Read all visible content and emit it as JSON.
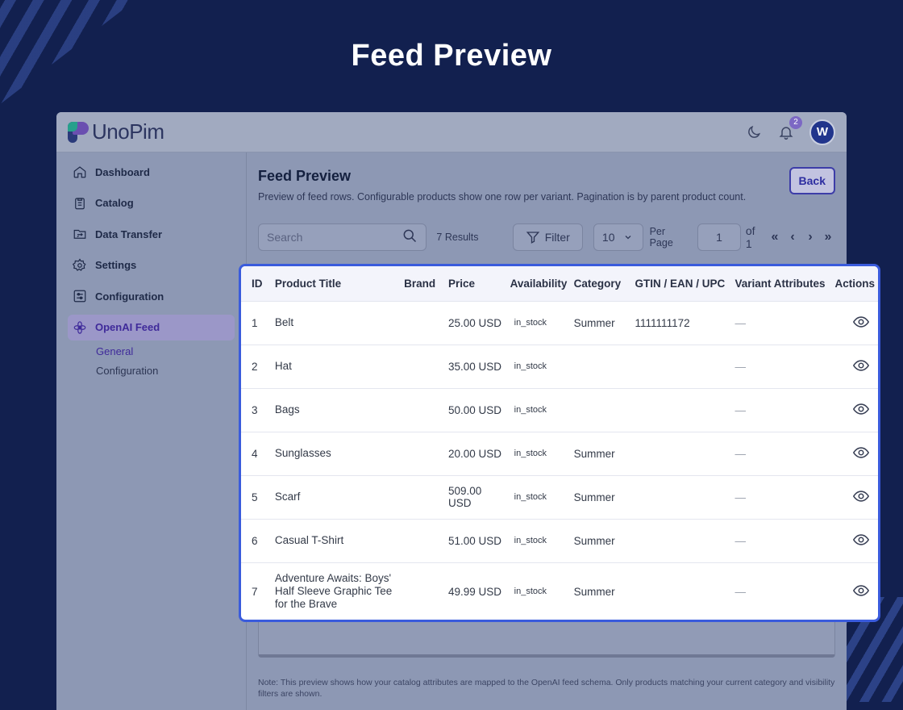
{
  "headline": "Feed Preview",
  "app": {
    "logo_text": "UnoPim",
    "notification_count": "2",
    "avatar_letter": "W"
  },
  "sidebar": {
    "items": [
      {
        "label": "Dashboard",
        "icon": "home-icon"
      },
      {
        "label": "Catalog",
        "icon": "clipboard-icon"
      },
      {
        "label": "Data Transfer",
        "icon": "folder-transfer-icon"
      },
      {
        "label": "Settings",
        "icon": "gear-icon"
      },
      {
        "label": "Configuration",
        "icon": "sliders-icon"
      },
      {
        "label": "OpenAI Feed",
        "icon": "openai-icon",
        "active": true
      }
    ],
    "subitems": [
      {
        "label": "General",
        "active": true
      },
      {
        "label": "Configuration"
      }
    ]
  },
  "page": {
    "title": "Feed Preview",
    "description": "Preview of feed rows. Configurable products show one row per variant. Pagination is by parent product count.",
    "back_label": "Back"
  },
  "toolbar": {
    "search_placeholder": "Search",
    "results": "7 Results",
    "filter_label": "Filter",
    "per_page_value": "10",
    "per_page_label": "Per Page",
    "page_value": "1",
    "of_label": "of 1"
  },
  "table": {
    "columns": [
      "ID",
      "Product Title",
      "Brand",
      "Price",
      "Availability",
      "Category",
      "GTIN / EAN / UPC",
      "Variant Attributes",
      "Actions"
    ],
    "rows": [
      {
        "id": "1",
        "title": "Belt",
        "brand": "",
        "price": "25.00 USD",
        "availability": "in_stock",
        "category": "Summer",
        "gtin": "1111111172",
        "variant": "—"
      },
      {
        "id": "2",
        "title": "Hat",
        "brand": "",
        "price": "35.00 USD",
        "availability": "in_stock",
        "category": "",
        "gtin": "",
        "variant": "—"
      },
      {
        "id": "3",
        "title": "Bags",
        "brand": "",
        "price": "50.00 USD",
        "availability": "in_stock",
        "category": "",
        "gtin": "",
        "variant": "—"
      },
      {
        "id": "4",
        "title": "Sunglasses",
        "brand": "",
        "price": "20.00 USD",
        "availability": "in_stock",
        "category": "Summer",
        "gtin": "",
        "variant": "—"
      },
      {
        "id": "5",
        "title": "Scarf",
        "brand": "",
        "price": "509.00 USD",
        "availability": "in_stock",
        "category": "Summer",
        "gtin": "",
        "variant": "—"
      },
      {
        "id": "6",
        "title": "Casual T-Shirt",
        "brand": "",
        "price": "51.00 USD",
        "availability": "in_stock",
        "category": "Summer",
        "gtin": "",
        "variant": "—"
      },
      {
        "id": "7",
        "title": "Adventure Awaits: Boys' Half Sleeve Graphic Tee for the Brave",
        "brand": "",
        "price": "49.99 USD",
        "availability": "in_stock",
        "category": "Summer",
        "gtin": "",
        "variant": "—"
      }
    ]
  },
  "note": "Note: This preview shows how your catalog attributes are mapped to the OpenAI feed schema. Only products matching your current category and visibility filters are shown.",
  "colors": {
    "background": "#12204f",
    "highlight_border": "#3a5bdc",
    "accent": "#3f2a9a"
  }
}
